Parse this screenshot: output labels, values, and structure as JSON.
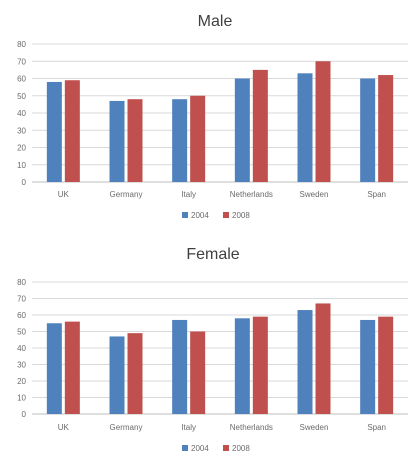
{
  "chart_data": [
    {
      "type": "bar",
      "title": "Male",
      "categories": [
        "UK",
        "Germany",
        "Italy",
        "Netherlands",
        "Sweden",
        "Span"
      ],
      "series": [
        {
          "name": "2004",
          "values": [
            58,
            47,
            48,
            60,
            63,
            60
          ]
        },
        {
          "name": "2008",
          "values": [
            59,
            48,
            50,
            65,
            70,
            62
          ]
        }
      ],
      "ylim": [
        0,
        80
      ],
      "yticks": [
        "0",
        "10",
        "20",
        "30",
        "40",
        "50",
        "60",
        "70",
        "80"
      ],
      "grid": true,
      "legend": "bottom"
    },
    {
      "type": "bar",
      "title": "Female",
      "categories": [
        "UK",
        "Germany",
        "Italy",
        "Netherlands",
        "Sweden",
        "Span"
      ],
      "series": [
        {
          "name": "2004",
          "values": [
            55,
            47,
            57,
            58,
            63,
            57
          ]
        },
        {
          "name": "2008",
          "values": [
            56,
            49,
            50,
            59,
            67,
            59
          ]
        }
      ],
      "ylim": [
        0,
        80
      ],
      "yticks": [
        "0",
        "10",
        "20",
        "30",
        "40",
        "50",
        "60",
        "70",
        "80"
      ],
      "grid": true,
      "legend": "bottom"
    }
  ],
  "colors": {
    "series_2004": "#4f81bd",
    "series_2008": "#c0504d"
  }
}
